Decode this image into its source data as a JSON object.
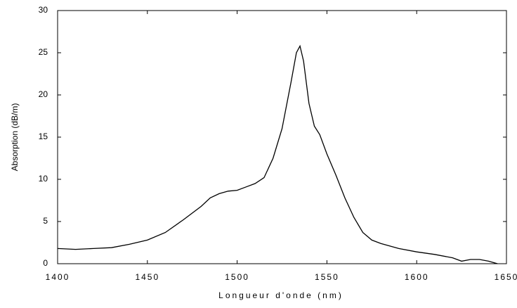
{
  "chart_data": {
    "type": "line",
    "xlabel": "Longueur d'onde (nm)",
    "ylabel": "Absorption (dB/m)",
    "x": [
      1400,
      1410,
      1420,
      1430,
      1440,
      1450,
      1460,
      1470,
      1480,
      1485,
      1490,
      1495,
      1500,
      1505,
      1510,
      1515,
      1520,
      1525,
      1530,
      1533,
      1535,
      1537,
      1540,
      1543,
      1546,
      1550,
      1555,
      1560,
      1565,
      1570,
      1575,
      1580,
      1590,
      1600,
      1610,
      1620,
      1625,
      1630,
      1635,
      1640,
      1645
    ],
    "series": [
      {
        "color": "#000000",
        "values": [
          1.8,
          1.7,
          1.8,
          1.9,
          2.3,
          2.8,
          3.7,
          5.2,
          6.8,
          7.8,
          8.3,
          8.6,
          8.7,
          9.1,
          9.5,
          10.2,
          12.5,
          16,
          21.5,
          25,
          25.8,
          24,
          19,
          16.3,
          15.3,
          13,
          10.5,
          7.8,
          5.5,
          3.7,
          2.8,
          2.4,
          1.8,
          1.4,
          1.1,
          0.7,
          0.3,
          0.5,
          0.5,
          0.3,
          0
        ]
      }
    ],
    "xlim": [
      1400,
      1650
    ],
    "xticks": [
      1400,
      1450,
      1500,
      1550,
      1600,
      1650
    ],
    "ylim": [
      0,
      30
    ],
    "yticks": [
      0,
      5,
      10,
      15,
      20,
      25,
      30
    ]
  }
}
